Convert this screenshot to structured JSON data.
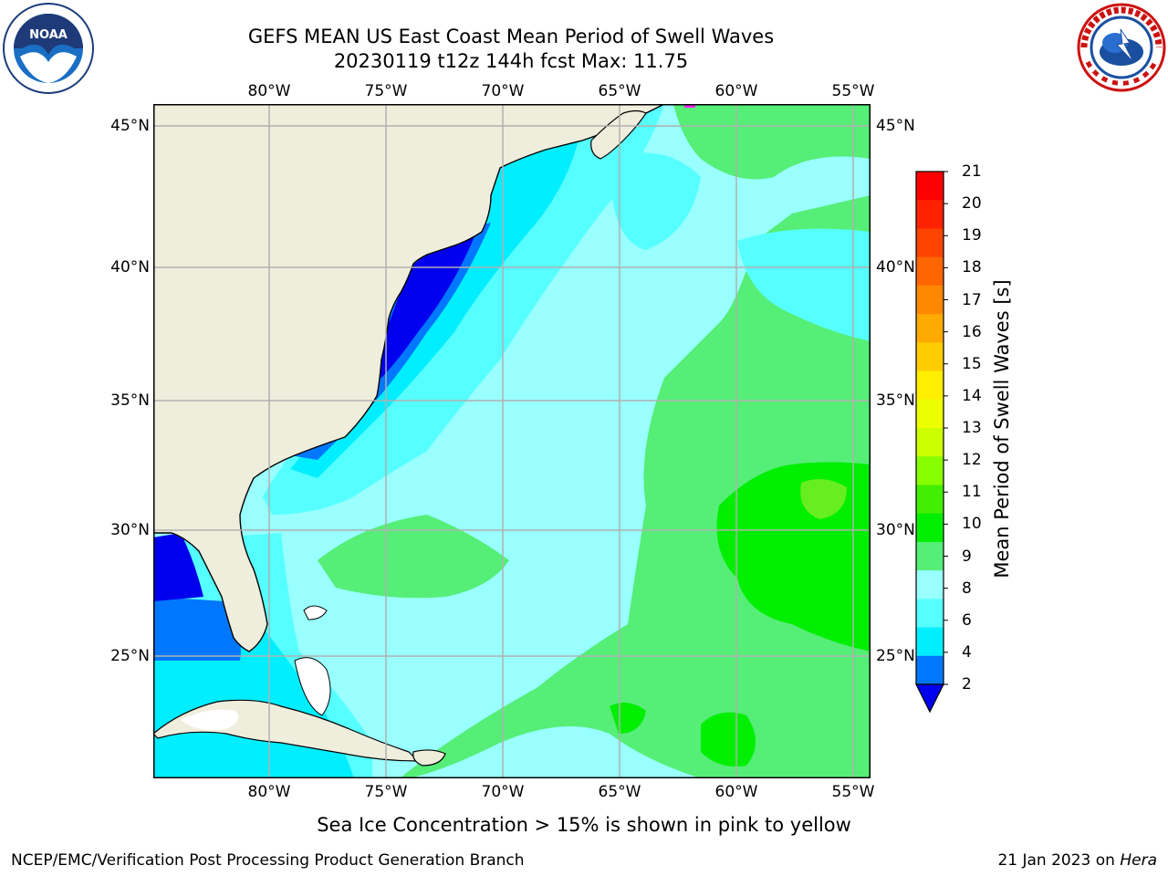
{
  "header": {
    "title_line1": "GEFS MEAN US East Coast Mean Period of Swell Waves",
    "title_line2": "20230119 t12z 144h fcst   Max: 11.75"
  },
  "logos": {
    "noaa": {
      "icon": "noaa-logo-icon",
      "text": "NOAA",
      "ring_text": "NATIONAL OCEANIC AND ATMOSPHERIC ADMINISTRATION · U.S. DEPARTMENT OF COMMERCE"
    },
    "nws": {
      "icon": "nws-logo-icon",
      "ring_text": "NATIONAL WEATHER SERVICE"
    }
  },
  "map": {
    "type": "map",
    "lon_range": [
      -85,
      -54
    ],
    "lat_range": [
      20.5,
      46
    ],
    "grid": true,
    "lon_ticks": [
      "80°W",
      "75°W",
      "70°W",
      "65°W",
      "60°W",
      "55°W"
    ],
    "lat_ticks": [
      "45°N",
      "40°N",
      "35°N",
      "30°N",
      "25°N"
    ],
    "colors": {
      "land": "#efeedd",
      "grid": "#b0b0b0",
      "coast": "#000000"
    }
  },
  "colorbar": {
    "label": "Mean Period of Swell Waves [s]",
    "ticks": [
      "21",
      "20",
      "19",
      "18",
      "17",
      "16",
      "15",
      "14",
      "13",
      "12",
      "11",
      "10",
      "9",
      "8",
      "6",
      "4",
      "2"
    ],
    "colors_top_to_bottom": [
      "#ff0000",
      "#ff2200",
      "#ff4400",
      "#ff6600",
      "#ff8800",
      "#ffaa00",
      "#ffcc00",
      "#ffee00",
      "#eeff00",
      "#ccff00",
      "#88ff00",
      "#44ee00",
      "#00ee00",
      "#55ee77",
      "#99ffff",
      "#55ffff",
      "#00eeff",
      "#0077ff"
    ],
    "extend_color": "#0000ee"
  },
  "note": "Sea Ice Concentration > 15% is shown in pink to yellow",
  "footer": {
    "left": "NCEP/EMC/Verification Post Processing Product Generation Branch",
    "right_prefix": "21 Jan 2023 on ",
    "right_system": "Hera"
  }
}
